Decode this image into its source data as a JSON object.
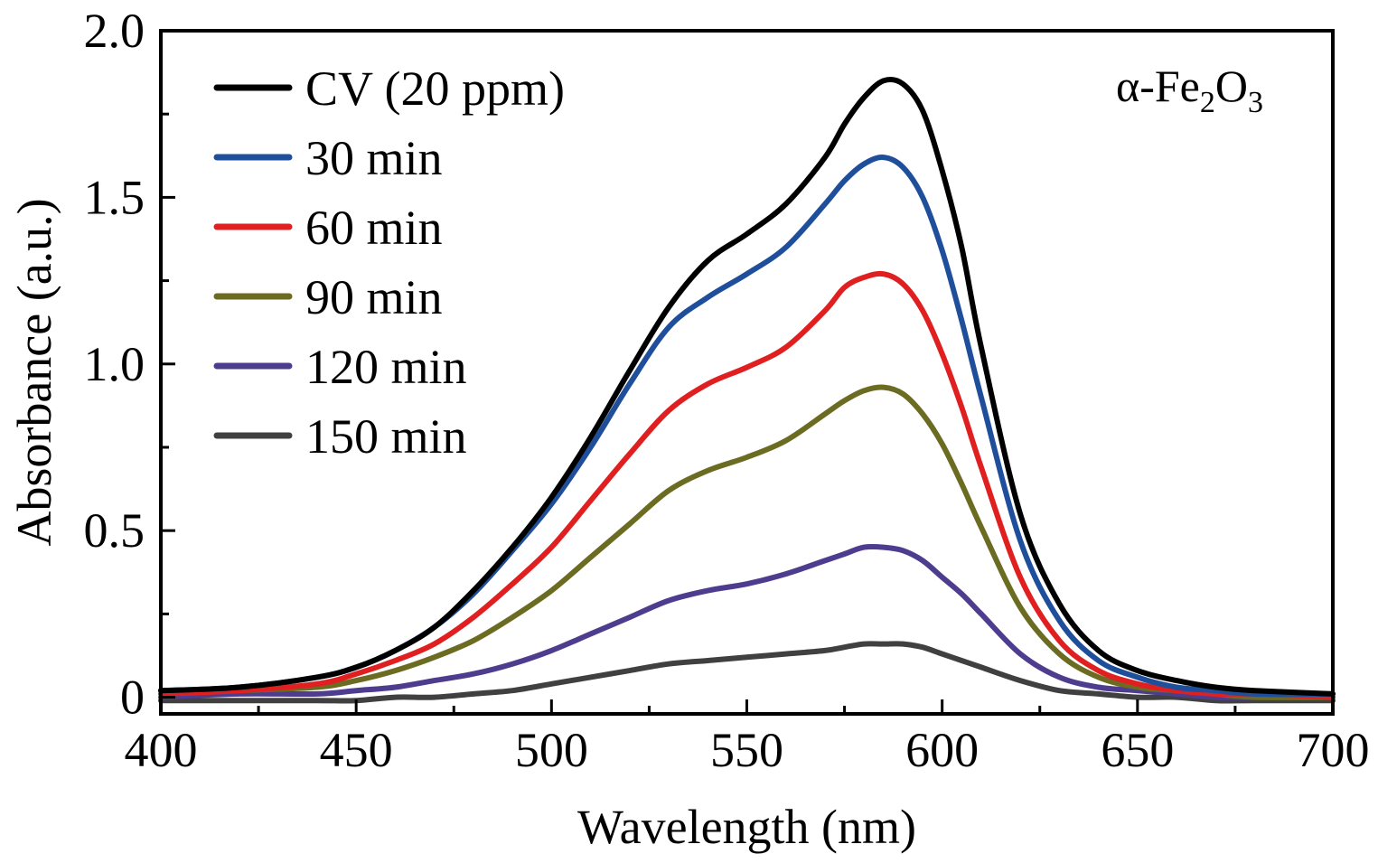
{
  "chart_data": {
    "type": "line",
    "xlabel": "Wavelength (nm)",
    "ylabel": "Absorbance (a.u.)",
    "xlim": [
      400,
      700
    ],
    "ylim": [
      -0.05,
      2.0
    ],
    "xticks": [
      "400",
      "450",
      "500",
      "550",
      "600",
      "650",
      "700"
    ],
    "yticks": [
      "0",
      "0.5",
      "1.0",
      "1.5",
      "2.0"
    ],
    "annotation": {
      "prefix": "α-Fe",
      "sub1": "2",
      "mid": "O",
      "sub2": "3"
    },
    "legend_position": "top-left",
    "x": [
      400,
      420,
      440,
      450,
      460,
      470,
      480,
      490,
      500,
      510,
      520,
      530,
      540,
      550,
      560,
      570,
      575,
      580,
      585,
      590,
      595,
      600,
      605,
      610,
      620,
      630,
      640,
      650,
      660,
      670,
      680,
      700
    ],
    "series": [
      {
        "name": "CV (20 ppm)",
        "color": "#000000",
        "values": [
          0.02,
          0.03,
          0.06,
          0.09,
          0.14,
          0.21,
          0.32,
          0.45,
          0.6,
          0.78,
          0.98,
          1.17,
          1.31,
          1.39,
          1.48,
          1.62,
          1.72,
          1.8,
          1.85,
          1.84,
          1.76,
          1.58,
          1.35,
          1.05,
          0.55,
          0.28,
          0.14,
          0.08,
          0.05,
          0.03,
          0.02,
          0.01
        ]
      },
      {
        "name": "30 min",
        "color": "#1f4e9b",
        "values": [
          0.02,
          0.03,
          0.06,
          0.09,
          0.14,
          0.21,
          0.31,
          0.44,
          0.58,
          0.75,
          0.94,
          1.11,
          1.2,
          1.27,
          1.35,
          1.48,
          1.55,
          1.6,
          1.62,
          1.59,
          1.5,
          1.34,
          1.13,
          0.9,
          0.47,
          0.23,
          0.11,
          0.06,
          0.03,
          0.02,
          0.01,
          0.01
        ]
      },
      {
        "name": "60 min",
        "color": "#e02020",
        "values": [
          0.01,
          0.02,
          0.04,
          0.07,
          0.11,
          0.16,
          0.24,
          0.34,
          0.45,
          0.59,
          0.73,
          0.86,
          0.94,
          0.99,
          1.05,
          1.16,
          1.23,
          1.26,
          1.27,
          1.24,
          1.16,
          1.03,
          0.87,
          0.69,
          0.36,
          0.17,
          0.08,
          0.04,
          0.02,
          0.01,
          0.01,
          0.0
        ]
      },
      {
        "name": "90 min",
        "color": "#6b6b22",
        "values": [
          0.01,
          0.02,
          0.03,
          0.05,
          0.08,
          0.12,
          0.17,
          0.24,
          0.32,
          0.42,
          0.52,
          0.62,
          0.68,
          0.72,
          0.77,
          0.85,
          0.89,
          0.92,
          0.93,
          0.91,
          0.85,
          0.76,
          0.64,
          0.51,
          0.27,
          0.13,
          0.06,
          0.03,
          0.02,
          0.01,
          0.0,
          0.0
        ]
      },
      {
        "name": "120 min",
        "color": "#4e3d8e",
        "values": [
          0.0,
          0.01,
          0.01,
          0.02,
          0.03,
          0.05,
          0.07,
          0.1,
          0.14,
          0.19,
          0.24,
          0.29,
          0.32,
          0.34,
          0.37,
          0.41,
          0.43,
          0.45,
          0.45,
          0.44,
          0.41,
          0.36,
          0.31,
          0.25,
          0.13,
          0.06,
          0.03,
          0.02,
          0.01,
          0.0,
          0.0,
          0.0
        ]
      },
      {
        "name": "150 min",
        "color": "#404040",
        "values": [
          -0.01,
          -0.01,
          -0.01,
          -0.01,
          0.0,
          0.0,
          0.01,
          0.02,
          0.04,
          0.06,
          0.08,
          0.1,
          0.11,
          0.12,
          0.13,
          0.14,
          0.15,
          0.16,
          0.16,
          0.16,
          0.15,
          0.13,
          0.11,
          0.09,
          0.05,
          0.02,
          0.01,
          0.0,
          0.0,
          -0.01,
          -0.01,
          -0.01
        ]
      }
    ]
  }
}
